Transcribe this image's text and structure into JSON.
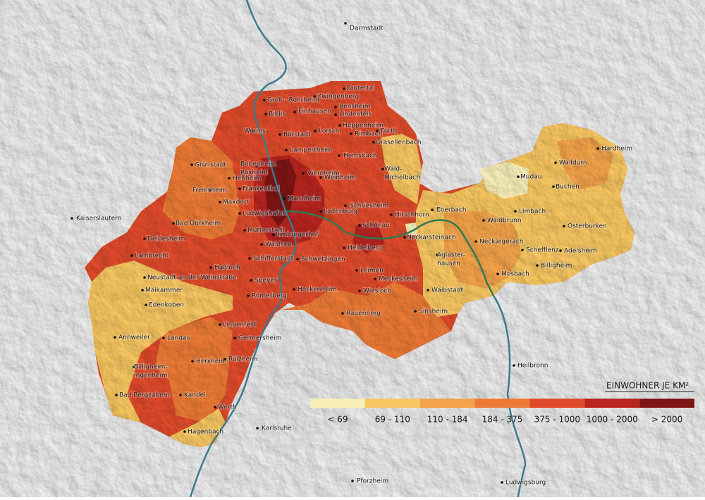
{
  "places": [
    {
      "label": "Darmstadt"
    },
    {
      "label": "Lautertal"
    },
    {
      "label": "Zwingenberg"
    },
    {
      "label": "Groß - Rohrheim"
    },
    {
      "label": "Bensheim"
    },
    {
      "label": "Biblis"
    },
    {
      "label": "Einhausen"
    },
    {
      "label": "Lindenfels"
    },
    {
      "label": "Heppenheim"
    },
    {
      "label": "Worms"
    },
    {
      "label": "Bürstadt"
    },
    {
      "label": "Lorsch"
    },
    {
      "label": "Rimbach"
    },
    {
      "label": "Fürth"
    },
    {
      "label": "Grasellenbach"
    },
    {
      "label": "Lampertheim"
    },
    {
      "label": "Hardheim"
    },
    {
      "label": "Walldürn"
    },
    {
      "label": "Grünstadt"
    },
    {
      "lines": [
        "Bobenheim",
        "Roxheim"
      ]
    },
    {
      "label": "Hemsbach"
    },
    {
      "lines": [
        "Wald-",
        "Michelbach"
      ]
    },
    {
      "label": "Mudau"
    },
    {
      "label": "Heßheim"
    },
    {
      "label": "Viernheim"
    },
    {
      "label": "Weinheim"
    },
    {
      "label": "Buchen"
    },
    {
      "label": "Frankenthal"
    },
    {
      "label": "Freinsheim"
    },
    {
      "label": "Mannheim"
    },
    {
      "label": "Kaiserslautern"
    },
    {
      "label": "Maxdorf"
    },
    {
      "label": "Ludwigshafen"
    },
    {
      "label": "Schriesheim"
    },
    {
      "label": "Ladenburg"
    },
    {
      "label": "Hirschhorn"
    },
    {
      "label": "Eberbach"
    },
    {
      "label": "Limbach"
    },
    {
      "label": "Bad Dürkheim"
    },
    {
      "label": "Waldbrunn"
    },
    {
      "label": "Osterburken"
    },
    {
      "label": "Mutterstadt"
    },
    {
      "label": "Limburgerhof"
    },
    {
      "label": "Schönau"
    },
    {
      "label": "Neckarsteinach"
    },
    {
      "label": "Deidesheim"
    },
    {
      "label": "Waldsee"
    },
    {
      "label": "Heidelberg"
    },
    {
      "label": "Neckargerach"
    },
    {
      "label": "Schefflenz"
    },
    {
      "label": "Adelsheim"
    },
    {
      "label": "Lambrecht"
    },
    {
      "label": "Schifferstadt"
    },
    {
      "label": "Schwetzingen"
    },
    {
      "lines": [
        "Aglaster-",
        "hausen"
      ]
    },
    {
      "label": "Billigheim"
    },
    {
      "label": "Haßloch"
    },
    {
      "label": "Neustadt an der Weinstraße"
    },
    {
      "label": "Leimen"
    },
    {
      "label": "Mosbach"
    },
    {
      "label": "Speyer"
    },
    {
      "label": "Maikammer"
    },
    {
      "label": "Hockenheim"
    },
    {
      "label": "Meckesheim"
    },
    {
      "label": "Waibstadt"
    },
    {
      "label": "Römerberg"
    },
    {
      "label": "Wiesloch"
    },
    {
      "label": "Edenkoben"
    },
    {
      "label": "Sinsheim"
    },
    {
      "label": "Rauenberg"
    },
    {
      "label": "Lingenfeld"
    },
    {
      "label": "Germersheim"
    },
    {
      "label": "Annweiler"
    },
    {
      "label": "Landau"
    },
    {
      "label": "Heilbronn"
    },
    {
      "label": "Herxheim"
    },
    {
      "label": "Rülzheim"
    },
    {
      "lines": [
        "Billigheim-",
        "Ingenheim"
      ]
    },
    {
      "label": "Kandel"
    },
    {
      "label": "Bad Bergzabern"
    },
    {
      "label": "Worth"
    },
    {
      "label": "Karlsruhe"
    },
    {
      "label": "Hagenbach"
    },
    {
      "label": "Pforzheim"
    },
    {
      "label": "Ludwigsburg"
    }
  ],
  "legend": {
    "title": "EINWOHNER JE KM²",
    "classes": [
      {
        "label": "< 69",
        "color": "#f8efb8"
      },
      {
        "label": "69 - 110",
        "color": "#f7c660"
      },
      {
        "label": "110 - 184",
        "color": "#f3a349"
      },
      {
        "label": "184 - 375",
        "color": "#ec7a35"
      },
      {
        "label": "375 - 1000",
        "color": "#e04a2a"
      },
      {
        "label": "1000 - 2000",
        "color": "#b9241e"
      },
      {
        "label": "> 2000",
        "color": "#7e1414"
      }
    ]
  }
}
